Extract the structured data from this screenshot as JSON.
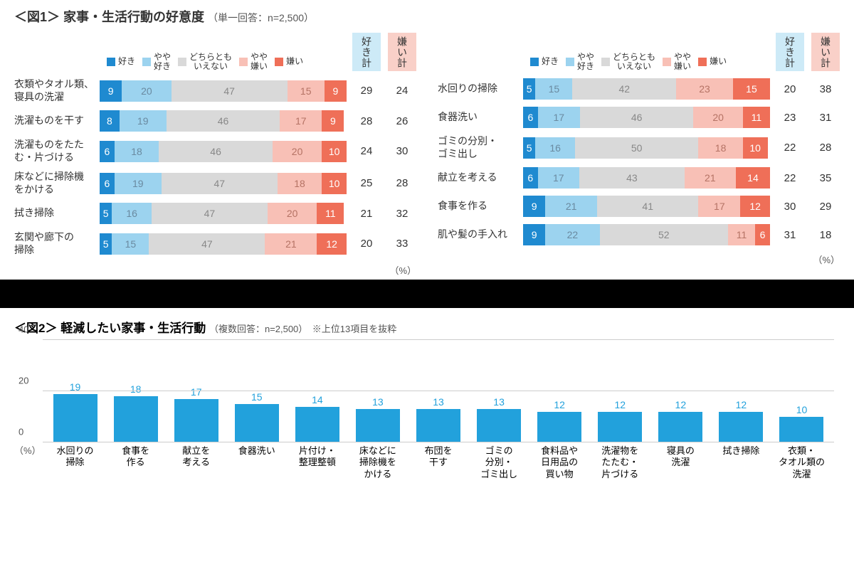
{
  "colors": {
    "c1": "#1f8ad0",
    "c2": "#9cd3ef",
    "c3": "#d9d9d9",
    "c4": "#f8c0b6",
    "c5": "#ef6f58",
    "sum_like_bg": "#cdeaf7",
    "sum_dis_bg": "#f9d0c8",
    "bar2": "#22a1dc",
    "seg_text1": "#ffffff",
    "seg_text2": "#6a8aa0",
    "seg_text3": "#888888",
    "seg_text4": "#b57365",
    "seg_text5": "#ffffff"
  },
  "fig1": {
    "title_prefix": "＜図1＞",
    "title_main": "家事・生活行動の好意度",
    "title_sub": "（単一回答：n=2,500）",
    "legend": [
      "好き",
      "やや\n好き",
      "どちらとも\nいえない",
      "やや\n嫌い",
      "嫌い"
    ],
    "sum_headers": [
      "好き計",
      "嫌い計"
    ],
    "unit": "（%）",
    "left": [
      {
        "label": "衣類やタオル類、\n寝具の洗濯",
        "v": [
          9,
          20,
          47,
          15,
          9
        ],
        "like": 29,
        "dis": 24
      },
      {
        "label": "洗濯ものを干す",
        "v": [
          8,
          19,
          46,
          17,
          9
        ],
        "like": 28,
        "dis": 26
      },
      {
        "label": "洗濯ものをたた\nむ・片づける",
        "v": [
          6,
          18,
          46,
          20,
          10
        ],
        "like": 24,
        "dis": 30
      },
      {
        "label": "床などに掃除機\nをかける",
        "v": [
          6,
          19,
          47,
          18,
          10
        ],
        "like": 25,
        "dis": 28
      },
      {
        "label": "拭き掃除",
        "v": [
          5,
          16,
          47,
          20,
          11
        ],
        "like": 21,
        "dis": 32
      },
      {
        "label": "玄関や廊下の\n掃除",
        "v": [
          5,
          15,
          47,
          21,
          12
        ],
        "like": 20,
        "dis": 33
      }
    ],
    "right": [
      {
        "label": "水回りの掃除",
        "v": [
          5,
          15,
          42,
          23,
          15
        ],
        "like": 20,
        "dis": 38
      },
      {
        "label": "食器洗い",
        "v": [
          6,
          17,
          46,
          20,
          11
        ],
        "like": 23,
        "dis": 31
      },
      {
        "label": "ゴミの分別・\nゴミ出し",
        "v": [
          5,
          16,
          50,
          18,
          10
        ],
        "like": 22,
        "dis": 28
      },
      {
        "label": "献立を考える",
        "v": [
          6,
          17,
          43,
          21,
          14
        ],
        "like": 22,
        "dis": 35
      },
      {
        "label": "食事を作る",
        "v": [
          9,
          21,
          41,
          17,
          12
        ],
        "like": 30,
        "dis": 29
      },
      {
        "label": "肌や髪の手入れ",
        "v": [
          9,
          22,
          52,
          11,
          6
        ],
        "like": 31,
        "dis": 18
      }
    ]
  },
  "fig2": {
    "title_prefix": "＜図2＞",
    "title_main": "軽減したい家事・生活行動",
    "title_sub": "（複数回答：n=2,500）　※上位13項目を抜粋",
    "ymax": 40,
    "ytick": 20,
    "yticks": [
      0,
      20,
      40
    ],
    "unit": "（%）",
    "items": [
      {
        "label": "水回りの\n掃除",
        "v": 19
      },
      {
        "label": "食事を\n作る",
        "v": 18
      },
      {
        "label": "献立を\n考える",
        "v": 17
      },
      {
        "label": "食器洗い",
        "v": 15
      },
      {
        "label": "片付け・\n整理整頓",
        "v": 14
      },
      {
        "label": "床などに\n掃除機を\nかける",
        "v": 13
      },
      {
        "label": "布団を\n干す",
        "v": 13
      },
      {
        "label": "ゴミの\n分別・\nゴミ出し",
        "v": 13
      },
      {
        "label": "食料品や\n日用品の\n買い物",
        "v": 12
      },
      {
        "label": "洗濯物を\nたたむ・\n片づける",
        "v": 12
      },
      {
        "label": "寝具の\n洗濯",
        "v": 12
      },
      {
        "label": "拭き掃除",
        "v": 12
      },
      {
        "label": "衣類・\nタオル類の\n洗濯",
        "v": 10
      }
    ]
  }
}
